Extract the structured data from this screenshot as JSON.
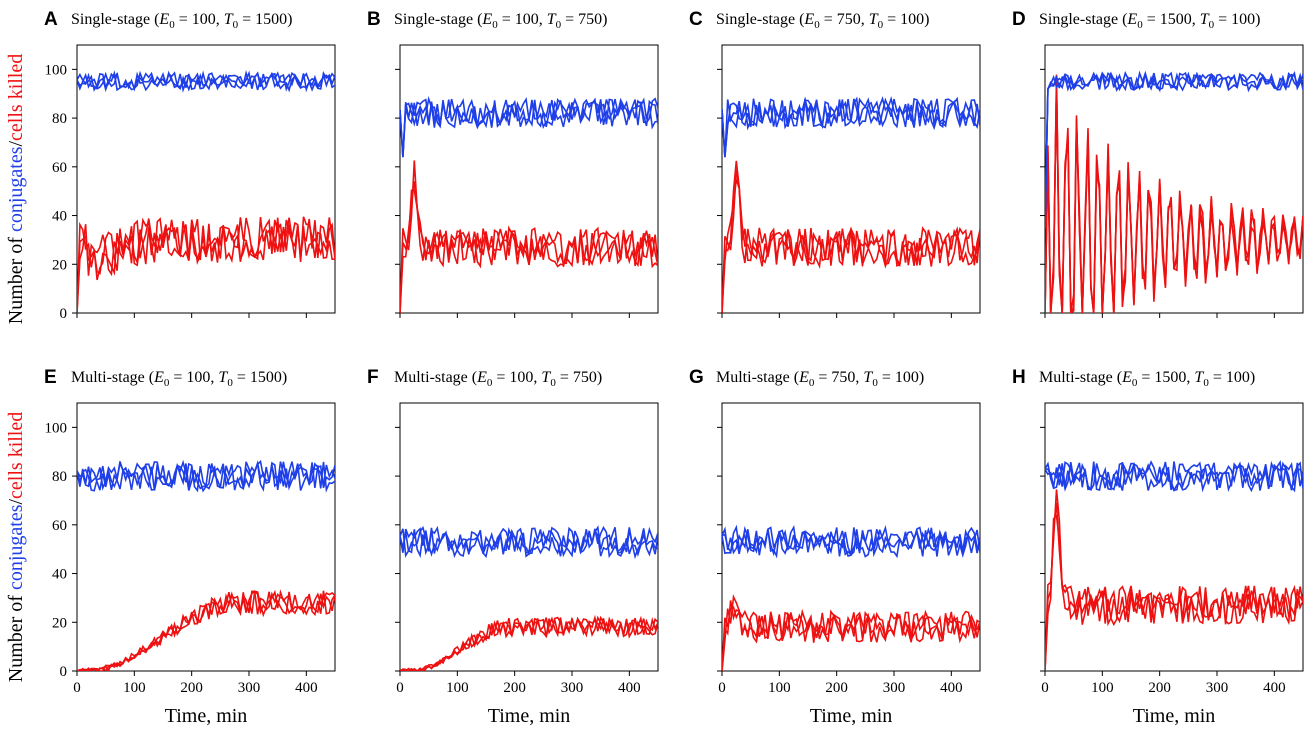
{
  "figure": {
    "ylabel": {
      "prefix": "Number of ",
      "conjugates": "conjugates",
      "sep": "/",
      "killed": "cells killed"
    },
    "colors": {
      "conjugates": "#1f3fe8",
      "killed": "#ee1111",
      "axis": "#000000"
    }
  },
  "chart_data": [
    {
      "letter": "A",
      "type": "line",
      "model": "Single-stage",
      "E0": "100",
      "T0": "1500",
      "xlabel": "",
      "xlim": [
        0,
        450
      ],
      "ylim": [
        0,
        110
      ],
      "xticks": [
        0,
        100,
        200,
        300,
        400
      ],
      "yticks": [
        0,
        20,
        40,
        60,
        80,
        100
      ],
      "grid": false,
      "blue_level": 95,
      "red": {
        "start": 0,
        "peak": 35,
        "peak_t": 10,
        "plateau": 30,
        "rise_t": 180,
        "amp": 6
      }
    },
    {
      "letter": "B",
      "type": "line",
      "model": "Single-stage",
      "E0": "100",
      "T0": "750",
      "xlabel": "",
      "xlim": [
        0,
        450
      ],
      "ylim": [
        0,
        110
      ],
      "xticks": [
        0,
        100,
        200,
        300,
        400
      ],
      "yticks": [
        0,
        20,
        40,
        60,
        80,
        100
      ],
      "grid": false,
      "blue_level": 82,
      "red": {
        "start": 0,
        "peak": 57,
        "peak_t": 25,
        "plateau": 27,
        "rise_t": 0,
        "amp": 5
      }
    },
    {
      "letter": "C",
      "type": "line",
      "model": "Single-stage",
      "E0": "750",
      "T0": "100",
      "xlabel": "",
      "xlim": [
        0,
        450
      ],
      "ylim": [
        0,
        110
      ],
      "xticks": [
        0,
        100,
        200,
        300,
        400
      ],
      "yticks": [
        0,
        20,
        40,
        60,
        80,
        100
      ],
      "grid": false,
      "blue_level": 82,
      "red": {
        "start": 0,
        "peak": 57,
        "peak_t": 25,
        "plateau": 27,
        "rise_t": 0,
        "amp": 5
      }
    },
    {
      "letter": "D",
      "type": "line",
      "model": "Single-stage",
      "E0": "1500",
      "T0": "100",
      "xlabel": "",
      "xlim": [
        0,
        450
      ],
      "ylim": [
        0,
        110
      ],
      "xticks": [
        0,
        100,
        200,
        300,
        400
      ],
      "yticks": [
        0,
        20,
        40,
        60,
        80,
        100
      ],
      "grid": false,
      "blue_level": 95,
      "red": {
        "start": 0,
        "peak": 88,
        "peak_t": 20,
        "plateau": 30,
        "rise_t": 0,
        "amp": 30
      }
    },
    {
      "letter": "E",
      "type": "line",
      "model": "Multi-stage",
      "E0": "100",
      "T0": "1500",
      "xlabel": "Time, min",
      "xlim": [
        0,
        450
      ],
      "ylim": [
        0,
        110
      ],
      "xticks": [
        0,
        100,
        200,
        300,
        400
      ],
      "yticks": [
        0,
        20,
        40,
        60,
        80,
        100
      ],
      "grid": false,
      "blue_level": 80,
      "red": {
        "start": 0,
        "peak": 0,
        "peak_t": 0,
        "plateau": 28,
        "rise_t": 260,
        "amp": 5
      }
    },
    {
      "letter": "F",
      "type": "line",
      "model": "Multi-stage",
      "E0": "100",
      "T0": "750",
      "xlabel": "Time, min",
      "xlim": [
        0,
        450
      ],
      "ylim": [
        0,
        110
      ],
      "xticks": [
        0,
        100,
        200,
        300,
        400
      ],
      "yticks": [
        0,
        20,
        40,
        60,
        80,
        100
      ],
      "grid": false,
      "blue_level": 53,
      "red": {
        "start": 0,
        "peak": 0,
        "peak_t": 0,
        "plateau": 18,
        "rise_t": 170,
        "amp": 4
      }
    },
    {
      "letter": "G",
      "type": "line",
      "model": "Multi-stage",
      "E0": "750",
      "T0": "100",
      "xlabel": "Time, min",
      "xlim": [
        0,
        450
      ],
      "ylim": [
        0,
        110
      ],
      "xticks": [
        0,
        100,
        200,
        300,
        400
      ],
      "yticks": [
        0,
        20,
        40,
        60,
        80,
        100
      ],
      "grid": false,
      "blue_level": 53,
      "red": {
        "start": 0,
        "peak": 25,
        "peak_t": 20,
        "plateau": 18,
        "rise_t": 0,
        "amp": 4
      }
    },
    {
      "letter": "H",
      "type": "line",
      "model": "Multi-stage",
      "E0": "1500",
      "T0": "100",
      "xlabel": "Time, min",
      "xlim": [
        0,
        450
      ],
      "ylim": [
        0,
        110
      ],
      "xticks": [
        0,
        100,
        200,
        300,
        400
      ],
      "yticks": [
        0,
        20,
        40,
        60,
        80,
        100
      ],
      "grid": false,
      "blue_level": 80,
      "red": {
        "start": 0,
        "peak": 68,
        "peak_t": 20,
        "plateau": 27,
        "rise_t": 0,
        "amp": 5
      }
    }
  ]
}
